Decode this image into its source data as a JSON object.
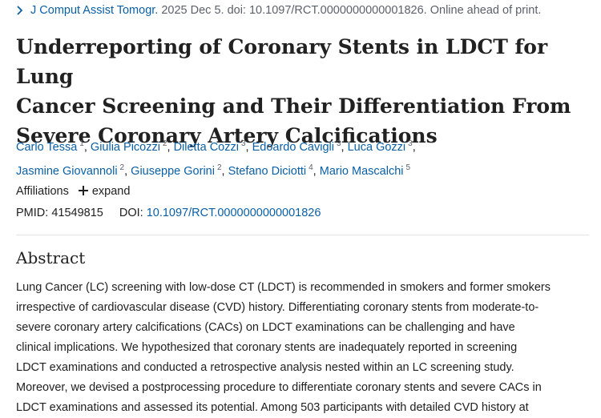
{
  "citation": {
    "journal": "J Comput Assist Tomogr.",
    "details": "2025 Dec 5. doi: 10.1097/RCT.0000000000001826. Online ahead of print."
  },
  "title_lines": [
    "Underreporting of Coronary Stents in LDCT for Lung",
    "Cancer Screening and Their Differentiation From",
    "Severe Coronary Artery Calcifications"
  ],
  "authors": [
    {
      "name": "Carlo Tessa",
      "sup": "1"
    },
    {
      "name": "Giulia Picozzi",
      "sup": "2"
    },
    {
      "name": "Diletta Cozzi",
      "sup": "3"
    },
    {
      "name": "Edoardo Cavigli",
      "sup": "3"
    },
    {
      "name": "Luca Gozzi",
      "sup": "3"
    },
    {
      "name": "Jasmine Giovannoli",
      "sup": "2"
    },
    {
      "name": "Giuseppe Gorini",
      "sup": "2"
    },
    {
      "name": "Stefano Diciotti",
      "sup": "4"
    },
    {
      "name": "Mario Mascalchi",
      "sup": "5"
    }
  ],
  "affiliations": {
    "label": "Affiliations",
    "expand": "expand"
  },
  "ids": {
    "pmid_label": "PMID:",
    "pmid": "41549815",
    "doi_label": "DOI:",
    "doi": "10.1097/RCT.0000000000001826"
  },
  "abstract": {
    "heading": "Abstract",
    "lines": [
      "Lung Cancer (LC) screening with low-dose CT (LDCT) is recommended in smokers and former smokers",
      "irrespective of cardiovascular disease (CVD) history. Differentiating coronary stents from moderate-to-",
      "severe coronary artery calcifications (CACs) on LDCT examinations can be challenging and have",
      "clinical implications. We hypothesized that coronary stents are inadequately reported in screening",
      "LDCT examinations and conducted a retrospective analysis nested within an LC screening study.",
      "Moreover, we devised a postprocessing procedure to differentiate coronary stents and severe CACs in",
      "LDCT examinations and assessed its potential. Among 503 participants with detailed CVD history at"
    ]
  },
  "colors": {
    "link": "#0b5fa5",
    "text": "#212121",
    "muted": "#5b616b",
    "divider": "#e4e4e4"
  },
  "icons": {
    "citation": "chevron-right-icon",
    "expand": "plus-icon"
  }
}
